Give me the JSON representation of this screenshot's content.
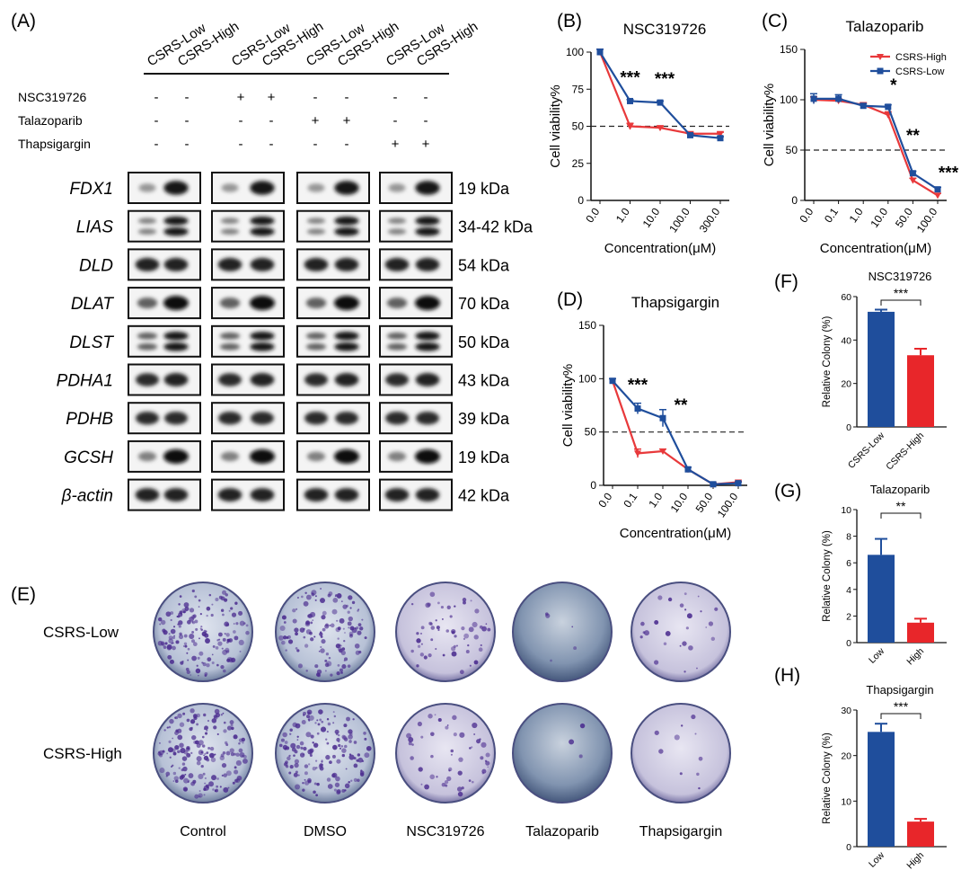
{
  "panels": {
    "A": "(A)",
    "B": "(B)",
    "C": "(C)",
    "D": "(D)",
    "E": "(E)",
    "F": "(F)",
    "G": "(G)",
    "H": "(H)"
  },
  "western": {
    "lane_labels": [
      "CSRS-Low",
      "CSRS-High",
      "CSRS-Low",
      "CSRS-High",
      "CSRS-Low",
      "CSRS-High",
      "CSRS-Low",
      "CSRS-High"
    ],
    "treatments": [
      {
        "name": "NSC319726",
        "marks": [
          "-",
          "-",
          "+",
          "+",
          "-",
          "-",
          "-",
          "-"
        ]
      },
      {
        "name": "Talazoparib",
        "marks": [
          "-",
          "-",
          "-",
          "-",
          "+",
          "+",
          "-",
          "-"
        ]
      },
      {
        "name": "Thapsigargin",
        "marks": [
          "-",
          "-",
          "-",
          "-",
          "-",
          "-",
          "+",
          "+"
        ]
      }
    ],
    "proteins": [
      {
        "name": "FDX1",
        "kda": "19 kDa",
        "low": 0.35,
        "high": 0.95
      },
      {
        "name": "LIAS",
        "kda": "34-42 kDa",
        "low": 0.45,
        "high": 0.95
      },
      {
        "name": "DLD",
        "kda": "54 kDa",
        "low": 0.9,
        "high": 0.9
      },
      {
        "name": "DLAT",
        "kda": "70 kDa",
        "low": 0.6,
        "high": 1.0
      },
      {
        "name": "DLST",
        "kda": "50 kDa",
        "low": 0.6,
        "high": 0.95
      },
      {
        "name": "PDHA1",
        "kda": "43 kDa",
        "low": 0.85,
        "high": 0.9
      },
      {
        "name": "PDHB",
        "kda": "39 kDa",
        "low": 0.85,
        "high": 0.85
      },
      {
        "name": "GCSH",
        "kda": "19 kDa",
        "low": 0.45,
        "high": 1.0
      },
      {
        "name": "β-actin",
        "kda": "42 kDa",
        "low": 0.9,
        "high": 0.9
      }
    ]
  },
  "colony": {
    "rows": [
      "CSRS-Low",
      "CSRS-High"
    ],
    "columns": [
      "Control",
      "DMSO",
      "NSC319726",
      "Talazoparib",
      "Thapsigargin"
    ],
    "density": [
      [
        0.9,
        0.75,
        0.35,
        0.03,
        0.15
      ],
      [
        1.0,
        0.9,
        0.3,
        0.02,
        0.06
      ]
    ]
  },
  "chart_data": [
    {
      "id": "B",
      "type": "line",
      "title": "NSC319726",
      "xlabel": "Concentration(μM)",
      "ylabel": "Cell viability%",
      "categories": [
        "0.0",
        "1.0",
        "10.0",
        "100.0",
        "300.0"
      ],
      "ylim": [
        0,
        100
      ],
      "yticks": [
        0,
        25,
        50,
        75,
        100
      ],
      "ref_line": 50,
      "series": [
        {
          "name": "CSRS-High",
          "color": "#e8393b",
          "values": [
            100,
            50,
            49,
            45,
            45
          ],
          "errors": [
            2,
            2,
            1,
            1,
            1
          ]
        },
        {
          "name": "CSRS-Low",
          "color": "#1f4e9c",
          "values": [
            100,
            67,
            66,
            44,
            42
          ],
          "errors": [
            2,
            1,
            1,
            1,
            1
          ]
        }
      ],
      "annotations": [
        {
          "x_index": 1,
          "text": "***"
        },
        {
          "x_index": 2,
          "text": "***"
        }
      ]
    },
    {
      "id": "C",
      "type": "line",
      "title": "Talazoparib",
      "xlabel": "Concentration(μM)",
      "ylabel": "Cell viability%",
      "categories": [
        "0.0",
        "0.1",
        "1.0",
        "10.0",
        "50.0",
        "100.0"
      ],
      "ylim": [
        0,
        150
      ],
      "yticks": [
        0,
        50,
        100,
        150
      ],
      "ref_line": 50,
      "legend": "top-right",
      "series": [
        {
          "name": "CSRS-High",
          "color": "#e8393b",
          "values": [
            100,
            99,
            95,
            85,
            20,
            5
          ],
          "errors": [
            3,
            2,
            2,
            3,
            2,
            2
          ]
        },
        {
          "name": "CSRS-Low",
          "color": "#1f4e9c",
          "values": [
            101,
            101,
            94,
            93,
            27,
            11
          ],
          "errors": [
            5,
            4,
            2,
            2,
            2,
            2
          ]
        }
      ],
      "annotations": [
        {
          "x_index": 3,
          "text": "*"
        },
        {
          "x_index": 4,
          "text": "**"
        },
        {
          "x_index": 5,
          "text": "***"
        }
      ]
    },
    {
      "id": "D",
      "type": "line",
      "title": "Thapsigargin",
      "xlabel": "Concentration(μM)",
      "ylabel": "Cell viability%",
      "categories": [
        "0.0",
        "0.1",
        "1.0",
        "10.0",
        "50.0",
        "100.0"
      ],
      "ylim": [
        0,
        150
      ],
      "yticks": [
        0,
        50,
        100,
        150
      ],
      "ref_line": 50,
      "series": [
        {
          "name": "CSRS-High",
          "color": "#e8393b",
          "values": [
            98,
            30,
            32,
            15,
            1,
            3
          ],
          "errors": [
            2,
            4,
            2,
            2,
            1,
            1
          ]
        },
        {
          "name": "CSRS-Low",
          "color": "#1f4e9c",
          "values": [
            98,
            72,
            63,
            15,
            1,
            2
          ],
          "errors": [
            2,
            5,
            8,
            2,
            1,
            1
          ]
        }
      ],
      "annotations": [
        {
          "x_index": 1,
          "text": "***"
        },
        {
          "x_index": 2,
          "text": "**"
        }
      ]
    },
    {
      "id": "F",
      "type": "bar",
      "title": "NSC319726",
      "ylabel": "Relative Colony (%)",
      "categories": [
        "CSRS-Low",
        "CSRS-High"
      ],
      "values": [
        53,
        33
      ],
      "errors": [
        1,
        3
      ],
      "colors": [
        "#1f4e9c",
        "#e8262a"
      ],
      "ylim": [
        0,
        60
      ],
      "yticks": [
        0,
        20,
        40,
        60
      ],
      "significance": "***"
    },
    {
      "id": "G",
      "type": "bar",
      "title": "Talazoparib",
      "ylabel": "Relative Colony (%)",
      "categories": [
        "Low",
        "High"
      ],
      "values": [
        6.6,
        1.5
      ],
      "errors": [
        1.2,
        0.3
      ],
      "colors": [
        "#1f4e9c",
        "#e8262a"
      ],
      "ylim": [
        0,
        10
      ],
      "yticks": [
        0,
        2,
        4,
        6,
        8,
        10
      ],
      "significance": "**"
    },
    {
      "id": "H",
      "type": "bar",
      "title": "Thapsigargin",
      "ylabel": "Relative Colony (%)",
      "categories": [
        "Low",
        "High"
      ],
      "values": [
        25.2,
        5.5
      ],
      "errors": [
        1.8,
        0.6
      ],
      "colors": [
        "#1f4e9c",
        "#e8262a"
      ],
      "ylim": [
        0,
        30
      ],
      "yticks": [
        0,
        10,
        20,
        30
      ],
      "significance": "***"
    }
  ]
}
